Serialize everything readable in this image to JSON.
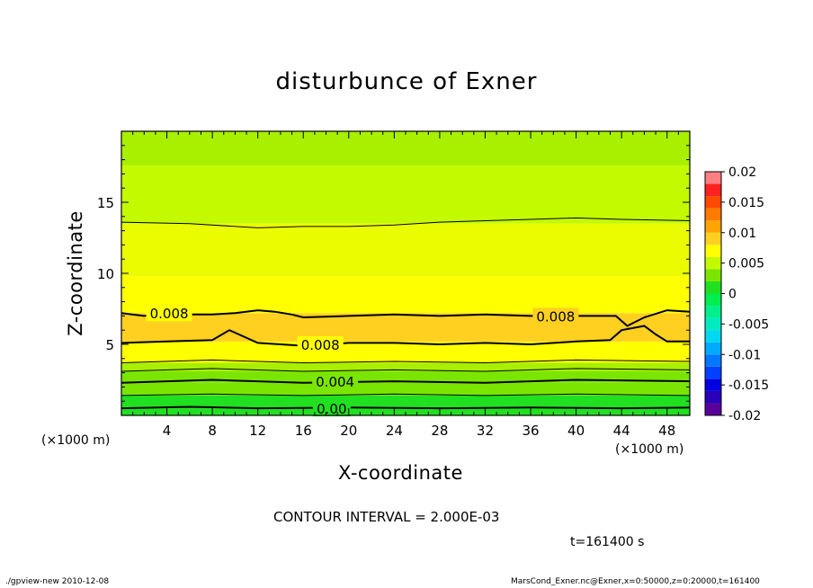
{
  "chart_data": {
    "type": "heatmap",
    "subtype": "filled-contour",
    "title": "disturbunce of Exner",
    "xlabel": "X-coordinate",
    "ylabel": "Z-coordinate",
    "x_unit_label": "(×1000 m)",
    "x_unit_label_right": "(×1000 m)",
    "xlim": [
      0,
      50
    ],
    "ylim": [
      0,
      20
    ],
    "xticks": [
      4,
      8,
      12,
      16,
      20,
      24,
      28,
      32,
      36,
      40,
      44,
      48
    ],
    "yticks": [
      5,
      10,
      15
    ],
    "colorbar": {
      "labels": [
        "0.02",
        "0.015",
        "0.01",
        "0.005",
        "0",
        "-0.005",
        "-0.01",
        "-0.015",
        "-0.02"
      ],
      "levels": [
        -0.02,
        -0.018,
        -0.016,
        -0.014,
        -0.012,
        -0.01,
        -0.008,
        -0.006,
        -0.004,
        -0.002,
        0,
        0.002,
        0.004,
        0.006,
        0.008,
        0.01,
        0.012,
        0.014,
        0.016,
        0.018,
        0.02
      ],
      "colors": [
        "#5a009a",
        "#2a00b8",
        "#0000e0",
        "#0040ff",
        "#0078ff",
        "#00aaff",
        "#00d8f0",
        "#00ecc0",
        "#00f08a",
        "#00ee50",
        "#20e020",
        "#7ae600",
        "#c4fa00",
        "#ffff00",
        "#ffd020",
        "#ffa400",
        "#ff7a00",
        "#ff4a00",
        "#ff2020",
        "#ff8080"
      ]
    },
    "bands": [
      {
        "z_bottom": 0.0,
        "z_top": 0.5,
        "value": 0.0003,
        "color": "#20e020"
      },
      {
        "z_bottom": 0.5,
        "z_top": 1.4,
        "value": 0.001,
        "color": "#20e020"
      },
      {
        "z_bottom": 1.4,
        "z_top": 2.3,
        "value": 0.003,
        "color": "#7ae600"
      },
      {
        "z_bottom": 2.3,
        "z_top": 3.1,
        "value": 0.0045,
        "color": "#7ae600"
      },
      {
        "z_bottom": 3.1,
        "z_top": 3.7,
        "value": 0.0055,
        "color": "#a8f000"
      },
      {
        "z_bottom": 3.7,
        "z_top": 5.2,
        "value": 0.007,
        "color": "#ffff00"
      },
      {
        "z_bottom": 5.2,
        "z_top": 7.2,
        "value": 0.0085,
        "color": "#ffd020"
      },
      {
        "z_bottom": 7.2,
        "z_top": 9.8,
        "value": 0.0075,
        "color": "#ffff00"
      },
      {
        "z_bottom": 9.8,
        "z_top": 13.5,
        "value": 0.0065,
        "color": "#ecfc00"
      },
      {
        "z_bottom": 13.5,
        "z_top": 17.6,
        "value": 0.0055,
        "color": "#c4fa00"
      },
      {
        "z_bottom": 17.6,
        "z_top": 20.0,
        "value": 0.0045,
        "color": "#a8f000"
      }
    ],
    "contours": [
      {
        "level": 0.0,
        "label": "0.00",
        "x": [
          0,
          6,
          12,
          20,
          28,
          36,
          44,
          50
        ],
        "z": [
          0.5,
          0.6,
          0.5,
          0.55,
          0.5,
          0.55,
          0.5,
          0.55
        ]
      },
      {
        "level": 0.002,
        "label": "",
        "x": [
          0,
          8,
          16,
          24,
          32,
          40,
          50
        ],
        "z": [
          1.4,
          1.5,
          1.4,
          1.5,
          1.4,
          1.5,
          1.4
        ]
      },
      {
        "level": 0.004,
        "label": "0.004",
        "x": [
          0,
          8,
          16,
          24,
          32,
          40,
          50
        ],
        "z": [
          2.3,
          2.5,
          2.3,
          2.4,
          2.3,
          2.5,
          2.4
        ]
      },
      {
        "level": 0.006,
        "label": "",
        "x": [
          0,
          8,
          16,
          24,
          32,
          40,
          50
        ],
        "z": [
          3.1,
          3.3,
          3.1,
          3.2,
          3.1,
          3.3,
          3.2
        ]
      },
      {
        "level": 0.006,
        "label": "",
        "x": [
          0,
          8,
          16,
          24,
          32,
          40,
          50
        ],
        "z": [
          3.7,
          3.9,
          3.7,
          3.8,
          3.7,
          3.9,
          3.8
        ]
      },
      {
        "level": 0.008,
        "label": "0.008",
        "x": [
          0,
          4,
          8,
          9.5,
          12,
          16,
          20,
          24,
          28,
          32,
          36,
          40,
          43,
          44,
          46,
          47,
          48,
          50
        ],
        "z": [
          5.1,
          5.2,
          5.3,
          6.0,
          5.1,
          4.9,
          5.1,
          5.1,
          5.0,
          5.1,
          5.0,
          5.2,
          5.3,
          6.0,
          6.3,
          5.7,
          5.2,
          5.2
        ]
      },
      {
        "level": 0.008,
        "label": "0.008",
        "x": [
          0,
          2,
          4,
          8,
          10,
          12,
          13.5,
          15,
          16,
          20,
          24,
          28,
          32,
          36,
          40,
          43.5,
          44.5,
          46,
          48,
          50
        ],
        "z": [
          7.2,
          7.0,
          7.1,
          7.1,
          7.2,
          7.4,
          7.3,
          7.1,
          6.9,
          7.0,
          7.1,
          7.0,
          7.1,
          7.0,
          7.0,
          7.0,
          6.3,
          6.9,
          7.4,
          7.3
        ]
      },
      {
        "level": 0.006,
        "label": "",
        "x": [
          0,
          6,
          12,
          16,
          20,
          24,
          28,
          32,
          36,
          40,
          44,
          50
        ],
        "z": [
          13.6,
          13.5,
          13.2,
          13.3,
          13.3,
          13.4,
          13.6,
          13.7,
          13.8,
          13.9,
          13.8,
          13.7
        ]
      }
    ],
    "contour_interval_text": "CONTOUR INTERVAL = 2.000E-03",
    "time_text": "t=161400 s"
  },
  "footer": {
    "left": "./gpview-new  2010-12-08",
    "right": "MarsCond_Exner.nc@Exner,x=0:50000,z=0:20000,t=161400"
  }
}
